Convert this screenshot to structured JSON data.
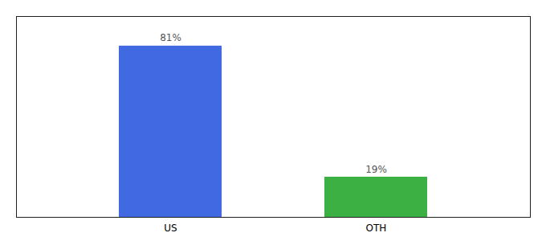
{
  "chart_data": {
    "type": "bar",
    "categories": [
      "US",
      "OTH"
    ],
    "values": [
      81,
      19
    ],
    "value_labels": [
      "81%",
      "19%"
    ],
    "colors": [
      "#4169e1",
      "#3cb043"
    ],
    "ylim": [
      0,
      95
    ],
    "data_labels": true,
    "tick_labels": "x",
    "grid": false
  }
}
